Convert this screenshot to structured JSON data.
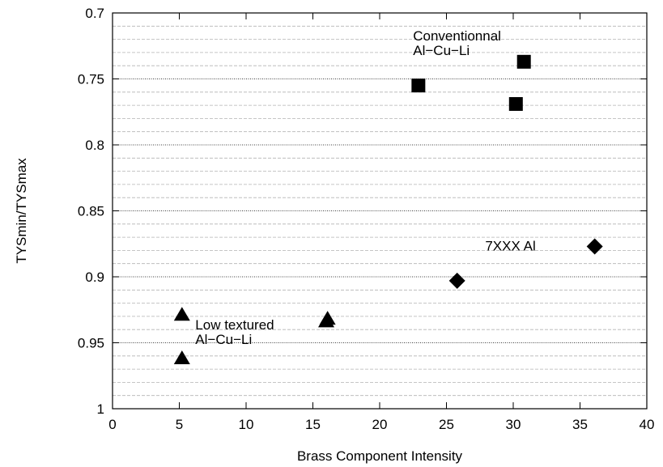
{
  "chart_data": {
    "type": "scatter",
    "xlabel": "Brass Component Intensity",
    "ylabel": "TYSmin/TYSmax",
    "xlim": [
      0,
      40
    ],
    "ylim": [
      0.7,
      1.0
    ],
    "y_inverted": true,
    "x_ticks": [
      0,
      5,
      10,
      15,
      20,
      25,
      30,
      35,
      40
    ],
    "y_ticks": [
      "0.7",
      "0.75",
      "0.8",
      "0.85",
      "0.9",
      "0.95",
      "1"
    ],
    "y_tick_values": [
      0.7,
      0.75,
      0.8,
      0.85,
      0.9,
      0.95,
      1.0
    ],
    "grid": {
      "major_y": true,
      "minor_y": true,
      "x": false
    },
    "series": [
      {
        "marker": "square",
        "color": "#000000",
        "points": [
          [
            22.9,
            0.755
          ],
          [
            30.2,
            0.769
          ],
          [
            30.8,
            0.737
          ]
        ]
      },
      {
        "marker": "diamond",
        "color": "#000000",
        "points": [
          [
            25.8,
            0.903
          ],
          [
            36.1,
            0.877
          ]
        ]
      },
      {
        "marker": "triangle",
        "color": "#000000",
        "points": [
          [
            5.2,
            0.929
          ],
          [
            5.2,
            0.962
          ],
          [
            16.0,
            0.934
          ],
          [
            16.1,
            0.932
          ]
        ]
      }
    ],
    "annotations": [
      {
        "lines": [
          "Conventionnal",
          "Al−Cu−Li"
        ],
        "x": 22.5,
        "y": 0.721
      },
      {
        "lines": [
          "7XXX Al"
        ],
        "x": 27.9,
        "y": 0.88
      },
      {
        "lines": [
          "Low textured",
          "Al−Cu−Li"
        ],
        "x": 6.2,
        "y": 0.94
      }
    ]
  }
}
